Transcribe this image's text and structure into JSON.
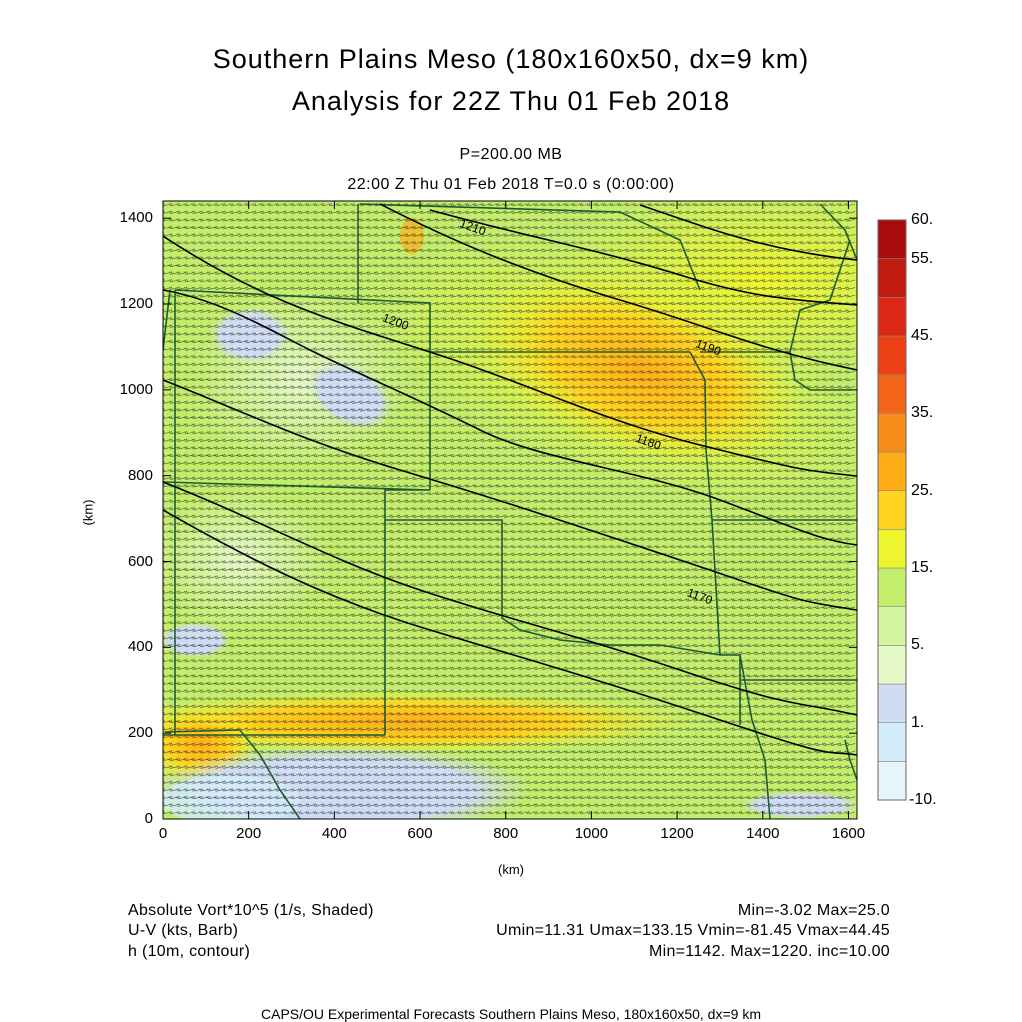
{
  "title": {
    "line1": "Southern Plains Meso (180x160x50, dx=9 km)",
    "line2": "Analysis for 22Z Thu 01 Feb 2018"
  },
  "subtitle": {
    "level": "P=200.00 MB",
    "time": "22:00 Z Thu 01 Feb 2018    T=0.0 s (0:00:00)"
  },
  "axes": {
    "x_label": "(km)",
    "y_label": "(km)",
    "x_range": [
      0,
      1620
    ],
    "y_range": [
      0,
      1440
    ],
    "x_ticks": [
      "0",
      "200",
      "400",
      "600",
      "800",
      "1000",
      "1200",
      "1400",
      "1600"
    ],
    "y_ticks": [
      "0",
      "200",
      "400",
      "600",
      "800",
      "1000",
      "1200",
      "1400"
    ]
  },
  "colorbar": {
    "labels": [
      "60.",
      "55.",
      "45.",
      "35.",
      "25.",
      "15.",
      "5.",
      "1.",
      "-10."
    ],
    "colors": [
      "#e8f6fb",
      "#d2ecfa",
      "#d0dcf4",
      "#e4f8c8",
      "#d4f6a0",
      "#c2ee6c",
      "#eef52e",
      "#ffd31e",
      "#ffad18",
      "#f88c16",
      "#f46418",
      "#ee4016",
      "#dc2814",
      "#c01c10",
      "#a80c0c"
    ]
  },
  "contours": {
    "labels": [
      {
        "text": "1210",
        "x": 720,
        "y": 1370
      },
      {
        "text": "1200",
        "x": 540,
        "y": 1150
      },
      {
        "text": "1190",
        "x": 1270,
        "y": 1090
      },
      {
        "text": "1180",
        "x": 1130,
        "y": 870
      },
      {
        "text": "1170",
        "x": 1250,
        "y": 510
      }
    ]
  },
  "info": {
    "row1_left": "Absolute Vort*10^5 (1/s, Shaded)",
    "row1_right": "Min=-3.02 Max=25.0",
    "row2_left": "U-V (kts, Barb)",
    "row2_right": "Umin=11.31 Umax=133.15 Vmin=-81.45 Vmax=44.45",
    "row3_left": "h (10m, contour)",
    "row3_right": "Min=1142. Max=1220. inc=10.00"
  },
  "footer": "CAPS/OU Experimental Forecasts  Southern Plains Meso, 180x160x50, dx=9 km"
}
